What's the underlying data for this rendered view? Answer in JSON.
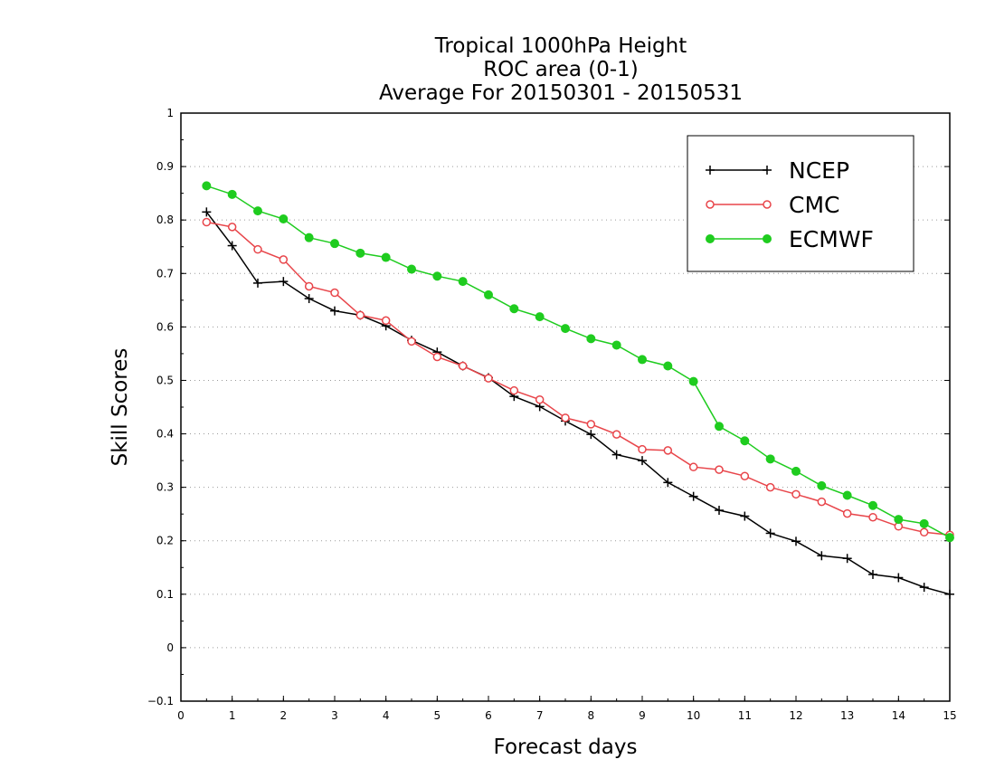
{
  "chart_data": {
    "type": "line",
    "title_lines": [
      "Tropical 1000hPa Height",
      "ROC area (0-1)",
      "Average For 20150301 - 20150531"
    ],
    "xlabel": "Forecast days",
    "ylabel": "Skill Scores",
    "xlim": [
      0,
      15
    ],
    "ylim": [
      -0.1,
      1
    ],
    "x_ticks": [
      0,
      1,
      2,
      3,
      4,
      5,
      6,
      7,
      8,
      9,
      10,
      11,
      12,
      13,
      14,
      15
    ],
    "y_ticks": [
      -0.1,
      0,
      0.1,
      0.2,
      0.3,
      0.4,
      0.5,
      0.6,
      0.7,
      0.8,
      0.9,
      1
    ],
    "y_tick_labels": [
      "−0.1",
      "0",
      "0.1",
      "0.2",
      "0.3",
      "0.4",
      "0.5",
      "0.6",
      "0.7",
      "0.8",
      "0.9",
      "1"
    ],
    "grid": "horizontal dotted",
    "legend_position": "top-right",
    "x": [
      0.5,
      1,
      1.5,
      2,
      2.5,
      3,
      3.5,
      4,
      4.5,
      5,
      5.5,
      6,
      6.5,
      7,
      7.5,
      8,
      8.5,
      9,
      9.5,
      10,
      10.5,
      11,
      11.5,
      12,
      12.5,
      13,
      13.5,
      14,
      14.5,
      15
    ],
    "series": [
      {
        "name": "NCEP",
        "color": "#000000",
        "marker": "plus",
        "values": [
          0.815,
          0.752,
          0.682,
          0.685,
          0.653,
          0.63,
          0.622,
          0.602,
          0.575,
          0.553,
          0.527,
          0.505,
          0.47,
          0.451,
          0.424,
          0.399,
          0.361,
          0.35,
          0.309,
          0.283,
          0.257,
          0.246,
          0.214,
          0.199,
          0.172,
          0.167,
          0.137,
          0.131,
          0.113,
          0.1
        ]
      },
      {
        "name": "CMC",
        "color": "#e8454a",
        "marker": "open-circle",
        "values": [
          0.796,
          0.787,
          0.745,
          0.726,
          0.676,
          0.664,
          0.622,
          0.612,
          0.573,
          0.544,
          0.527,
          0.504,
          0.481,
          0.464,
          0.43,
          0.418,
          0.399,
          0.371,
          0.369,
          0.338,
          0.333,
          0.321,
          0.3,
          0.287,
          0.273,
          0.251,
          0.244,
          0.227,
          0.216,
          0.211
        ]
      },
      {
        "name": "ECMWF",
        "color": "#1fcc1f",
        "marker": "filled-circle",
        "values": [
          0.864,
          0.848,
          0.817,
          0.802,
          0.767,
          0.756,
          0.738,
          0.73,
          0.708,
          0.695,
          0.685,
          0.66,
          0.634,
          0.619,
          0.597,
          0.578,
          0.566,
          0.539,
          0.527,
          0.498,
          0.414,
          0.387,
          0.353,
          0.33,
          0.303,
          0.285,
          0.266,
          0.24,
          0.232,
          0.206
        ]
      }
    ]
  }
}
